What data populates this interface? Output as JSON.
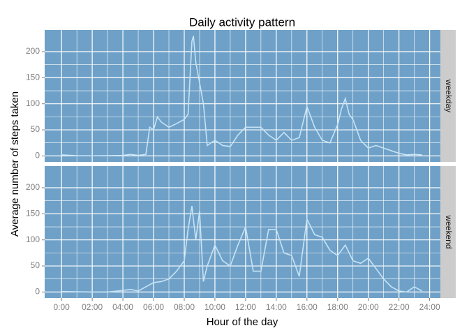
{
  "chart_data": [
    {
      "type": "line",
      "title": "Daily activity pattern",
      "x_label": "Hour of the day",
      "y_label": "Average number of steps taken",
      "facet": "weekday",
      "color": "#c6e3f5",
      "background": "#6fa1c8",
      "grid": true,
      "x": [
        0,
        1,
        2,
        3,
        4,
        4.5,
        5,
        5.5,
        5.75,
        6,
        6.25,
        6.5,
        7,
        7.5,
        8,
        8.25,
        8.5,
        8.6,
        8.75,
        9,
        9.25,
        9.5,
        10,
        10.5,
        11,
        11.5,
        12,
        12.5,
        13,
        13.5,
        14,
        14.5,
        15,
        15.5,
        16,
        16.5,
        17,
        17.5,
        18,
        18.25,
        18.5,
        18.75,
        19,
        19.5,
        20,
        20.5,
        21,
        21.5,
        22,
        22.5,
        23,
        23.5
      ],
      "values": [
        2,
        0.5,
        0.2,
        0.5,
        1,
        3,
        1,
        3,
        55,
        50,
        75,
        65,
        55,
        62,
        70,
        80,
        220,
        230,
        180,
        140,
        100,
        20,
        30,
        20,
        18,
        40,
        55,
        55,
        55,
        40,
        30,
        45,
        30,
        35,
        95,
        55,
        30,
        25,
        60,
        90,
        110,
        80,
        70,
        30,
        15,
        20,
        15,
        10,
        5,
        2,
        3,
        2
      ],
      "xlim": [
        -1.1,
        24.7
      ],
      "xticks": [
        {
          "value": 0,
          "label": "0:00"
        },
        {
          "value": 2,
          "label": "02:00"
        },
        {
          "value": 4,
          "label": "04:00"
        },
        {
          "value": 6,
          "label": "06:00"
        },
        {
          "value": 8,
          "label": "08:00"
        },
        {
          "value": 10,
          "label": "10:00"
        },
        {
          "value": 12,
          "label": "12:00"
        },
        {
          "value": 14,
          "label": "14:00"
        },
        {
          "value": 16,
          "label": "16:00"
        },
        {
          "value": 18,
          "label": "18:00"
        },
        {
          "value": 20,
          "label": "20:00"
        },
        {
          "value": 22,
          "label": "22:00"
        },
        {
          "value": 24,
          "label": "24:00"
        }
      ],
      "ylim": [
        -11.5,
        241.5
      ],
      "yticks": [
        0,
        50,
        100,
        150,
        200
      ]
    },
    {
      "type": "line",
      "facet": "weekend",
      "color": "#c6e3f5",
      "background": "#6fa1c8",
      "grid": true,
      "x": [
        0,
        1,
        2,
        3,
        4,
        4.5,
        5,
        5.5,
        6,
        6.5,
        7,
        7.5,
        8,
        8.25,
        8.5,
        8.75,
        9,
        9.25,
        9.5,
        10,
        10.5,
        11,
        11.5,
        12,
        12.5,
        13,
        13.5,
        14,
        14.5,
        15,
        15.5,
        16,
        16.5,
        17,
        17.5,
        18,
        18.5,
        19,
        19.5,
        20,
        20.5,
        21,
        21.5,
        22,
        22.5,
        23,
        23.5
      ],
      "values": [
        1,
        0.5,
        0,
        0,
        3,
        5,
        2,
        10,
        18,
        20,
        25,
        40,
        60,
        120,
        165,
        100,
        155,
        20,
        50,
        90,
        60,
        50,
        90,
        125,
        40,
        40,
        120,
        120,
        75,
        70,
        30,
        140,
        110,
        105,
        80,
        70,
        90,
        60,
        55,
        65,
        45,
        25,
        10,
        2,
        0,
        10,
        2
      ],
      "xlim": [
        -1.1,
        24.7
      ],
      "xticks": [
        {
          "value": 0,
          "label": "0:00"
        },
        {
          "value": 2,
          "label": "02:00"
        },
        {
          "value": 4,
          "label": "04:00"
        },
        {
          "value": 6,
          "label": "06:00"
        },
        {
          "value": 8,
          "label": "08:00"
        },
        {
          "value": 10,
          "label": "10:00"
        },
        {
          "value": 12,
          "label": "12:00"
        },
        {
          "value": 14,
          "label": "14:00"
        },
        {
          "value": 16,
          "label": "16:00"
        },
        {
          "value": 18,
          "label": "18:00"
        },
        {
          "value": 20,
          "label": "20:00"
        },
        {
          "value": 22,
          "label": "22:00"
        },
        {
          "value": 24,
          "label": "24:00"
        }
      ],
      "ylim": [
        -11.5,
        241.5
      ],
      "yticks": [
        0,
        50,
        100,
        150,
        200
      ]
    }
  ]
}
